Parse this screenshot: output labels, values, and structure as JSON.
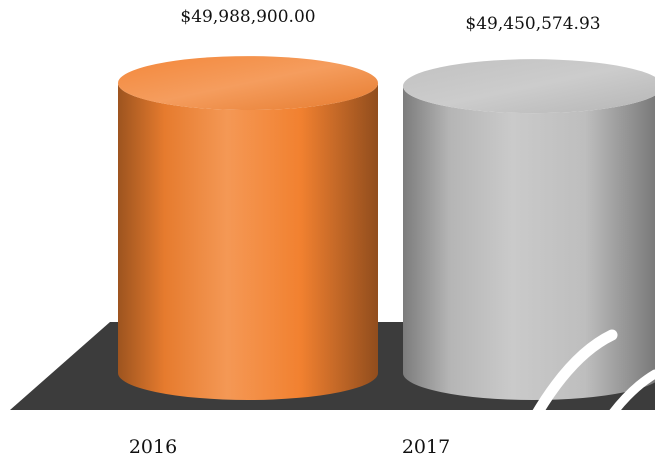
{
  "chart_data": {
    "type": "bar",
    "style": "3d-cylinder",
    "categories": [
      "2016",
      "2017"
    ],
    "values": [
      49988900.0,
      49450574.93
    ],
    "data_labels": [
      "$49,988,900.00",
      "$49,450,574.93"
    ],
    "title": "",
    "xlabel": "",
    "ylabel": "",
    "ylim": [
      0,
      50000000
    ],
    "grid": false,
    "legend": "none",
    "colors": [
      "#F28130",
      "#BEBEBE"
    ],
    "floor_color": "#3C3C3C"
  },
  "watermark_color": "#FFFFFF"
}
